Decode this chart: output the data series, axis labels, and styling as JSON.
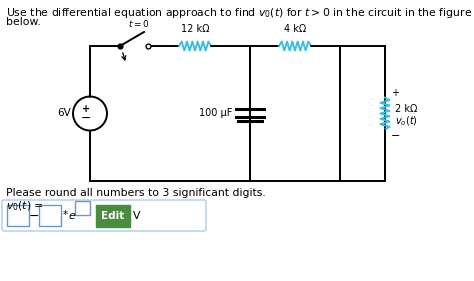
{
  "bg_color": "#ffffff",
  "text_color": "#000000",
  "circuit_color": "#000000",
  "resistor_color": "#3bbfde",
  "title_line1": "Use the differential equation approach to find $v_0(t)$ for $t > 0$ in the circuit in the figure",
  "title_line2": "below.",
  "round_text": "Please round all numbers to 3 significant digits.",
  "vo_label": "$v_0(t)$ =",
  "r1_label": "12 kΩ",
  "r2_label": "4 kΩ",
  "c_label": "100 μF",
  "r3_label": "2 kΩ",
  "vs_label": "6V",
  "t_label": "$t = 0$",
  "vo_node": "$v_o(t)$",
  "plus": "+",
  "minus": "−",
  "edit_btn_color": "#4a8c3f",
  "edit_btn_text": "Edit",
  "unit_v": "V",
  "input_border": "#6699cc"
}
